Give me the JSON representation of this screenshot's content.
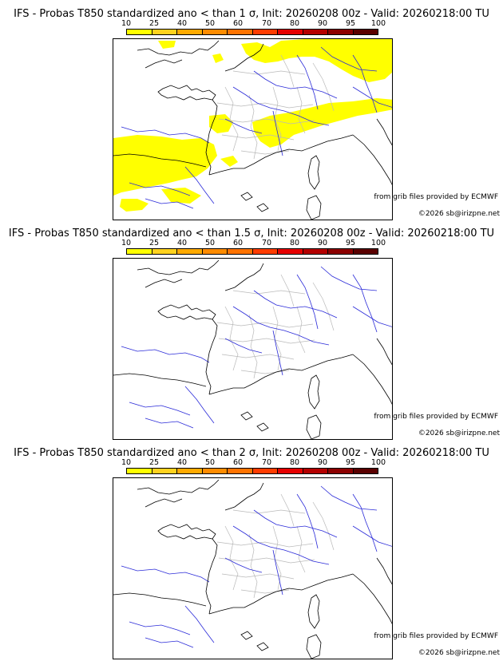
{
  "panels": [
    {
      "title": "IFS - Probas T850  standardized ano < than 1 σ, Init: 20260208 00z - Valid: 20260218:00 TU",
      "shows_yellow_probability": true
    },
    {
      "title": "IFS - Probas T850  standardized ano < than 1.5 σ, Init: 20260208 00z - Valid: 20260218:00 TU",
      "shows_yellow_probability": false
    },
    {
      "title": "IFS - Probas T850  standardized ano < than 2 σ, Init: 20260208 00z - Valid: 20260218:00 TU",
      "shows_yellow_probability": false
    }
  ],
  "colorbar": {
    "labels": [
      "10",
      "25",
      "40",
      "50",
      "60",
      "70",
      "80",
      "90",
      "95",
      "100"
    ],
    "colors": [
      "#ffff00",
      "#ffd21e",
      "#ffaa00",
      "#ff8c00",
      "#ff7300",
      "#ff3c00",
      "#e60000",
      "#b40000",
      "#8c0000",
      "#5a0000"
    ]
  },
  "credits": {
    "source": "from grib files provided by ECMWF",
    "copyright": "©2026 sb@irizpne.net"
  },
  "map_colors": {
    "coast": "#000000",
    "rivers": "#2a2ad8",
    "admin": "#b9b9b9",
    "probability_fill": "#ffff00"
  }
}
